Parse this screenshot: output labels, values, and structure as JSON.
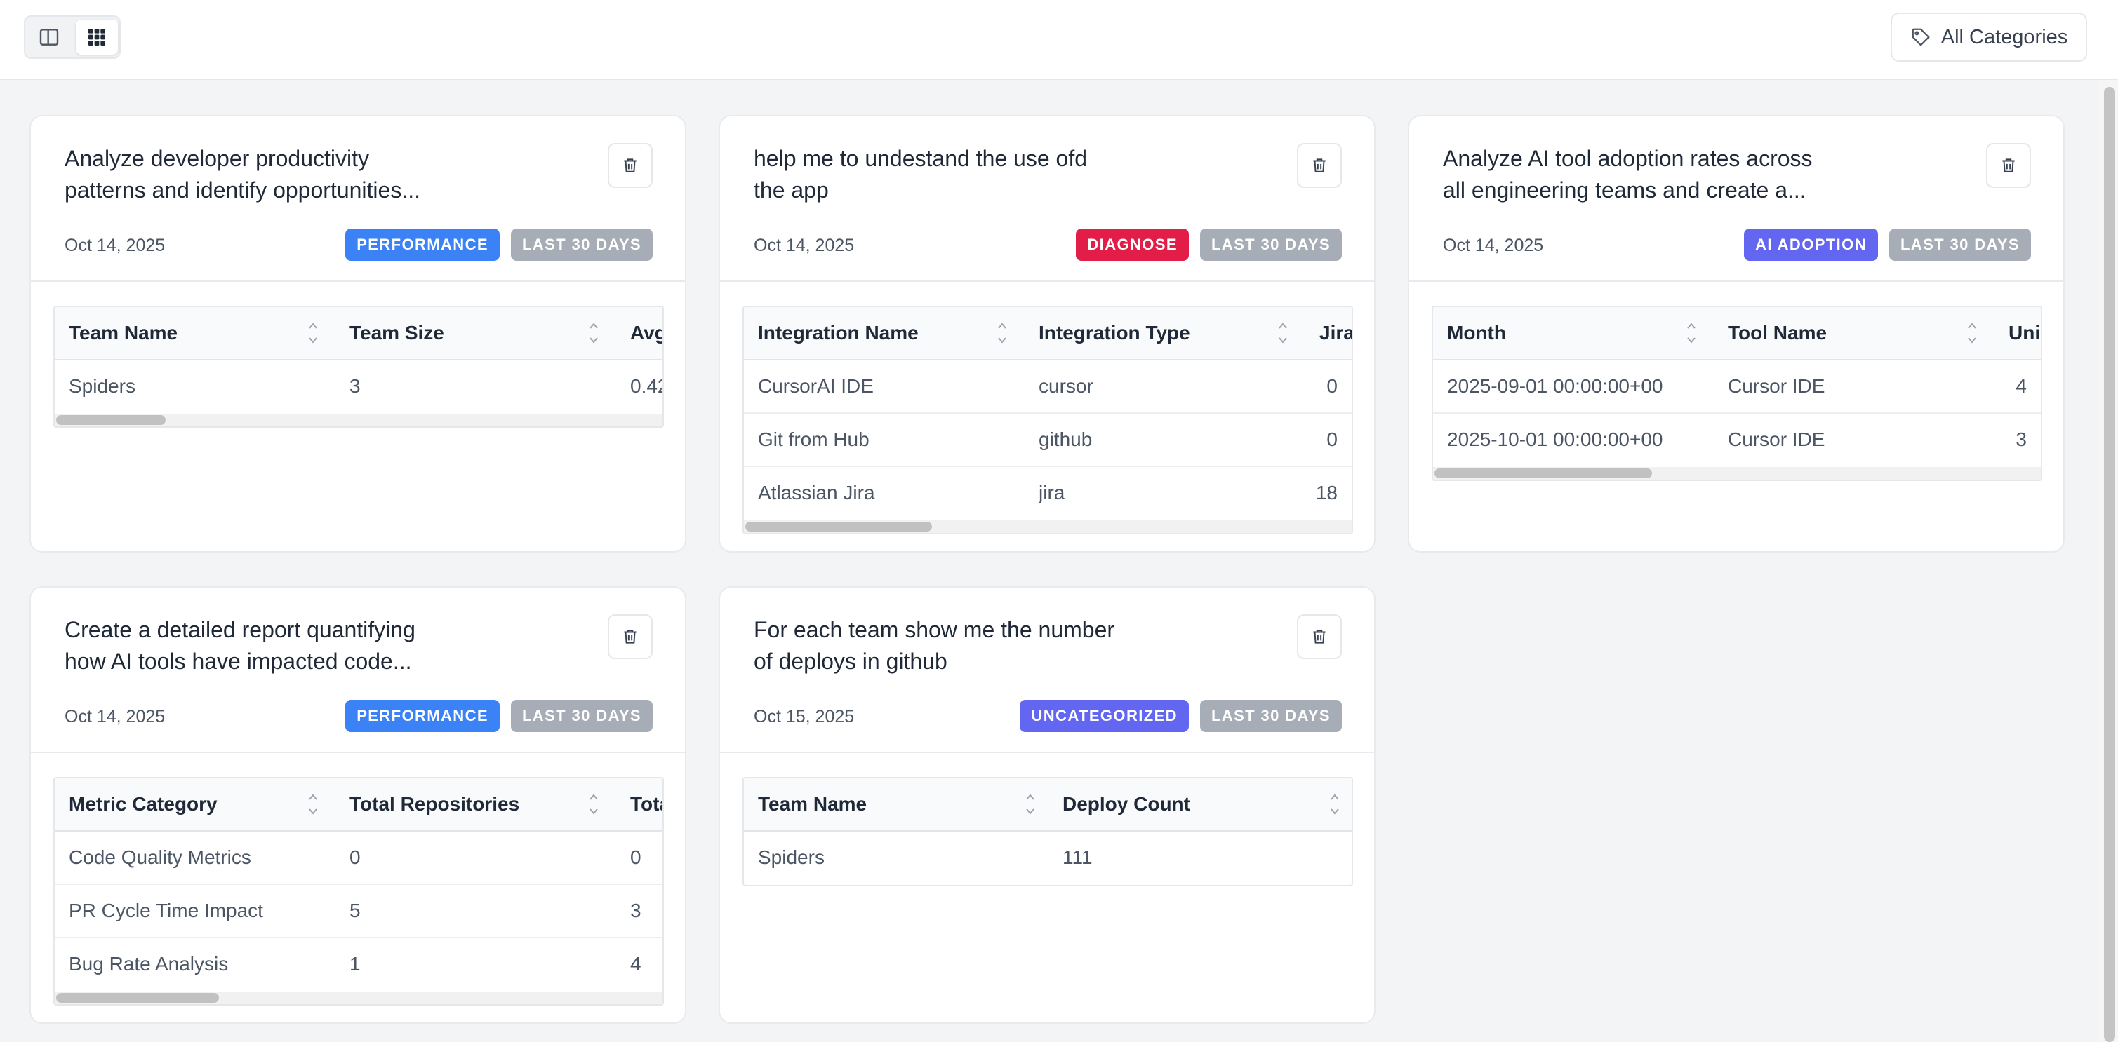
{
  "toolbar": {
    "categories_label": "All Categories"
  },
  "colors": {
    "performance": "#3b82f6",
    "diagnose": "#e11d48",
    "ai_adoption": "#6366f1",
    "uncategorized": "#6366f1",
    "period": "#a7adb7"
  },
  "cards": [
    {
      "title": "Analyze developer productivity patterns and identify opportunities...",
      "date": "Oct 14, 2025",
      "category": "PERFORMANCE",
      "period": "LAST 30 DAYS",
      "columns": [
        "Team Name",
        "Team Size",
        "Avg"
      ],
      "rows": [
        [
          "Spiders",
          "3",
          "0.42"
        ]
      ]
    },
    {
      "title": "help me to undestand the use ofd the app",
      "date": "Oct 14, 2025",
      "category": "DIAGNOSE",
      "period": "LAST 30 DAYS",
      "columns": [
        "Integration Name",
        "Integration Type",
        "Jira"
      ],
      "rows": [
        [
          "CursorAI IDE",
          "cursor",
          "0"
        ],
        [
          "Git from Hub",
          "github",
          "0"
        ],
        [
          "Atlassian Jira",
          "jira",
          "18"
        ]
      ]
    },
    {
      "title": "Analyze AI tool adoption rates across all engineering teams and create a...",
      "date": "Oct 14, 2025",
      "category": "AI ADOPTION",
      "period": "LAST 30 DAYS",
      "columns": [
        "Month",
        "Tool Name",
        "Uni"
      ],
      "rows": [
        [
          "2025-09-01 00:00:00+00",
          "Cursor IDE",
          "4"
        ],
        [
          "2025-10-01 00:00:00+00",
          "Cursor IDE",
          "3"
        ]
      ]
    },
    {
      "title": "Create a detailed report quantifying how AI tools have impacted code...",
      "date": "Oct 14, 2025",
      "category": "PERFORMANCE",
      "period": "LAST 30 DAYS",
      "columns": [
        "Metric Category",
        "Total Repositories",
        "Tota"
      ],
      "rows": [
        [
          "Code Quality Metrics",
          "0",
          "0"
        ],
        [
          "PR Cycle Time Impact",
          "5",
          "3"
        ],
        [
          "Bug Rate Analysis",
          "1",
          "4"
        ]
      ]
    },
    {
      "title": "For each team show me the number of deploys in github",
      "date": "Oct 15, 2025",
      "category": "UNCATEGORIZED",
      "period": "LAST 30 DAYS",
      "columns": [
        "Team Name",
        "Deploy Count"
      ],
      "rows": [
        [
          "Spiders",
          "111"
        ]
      ]
    }
  ]
}
